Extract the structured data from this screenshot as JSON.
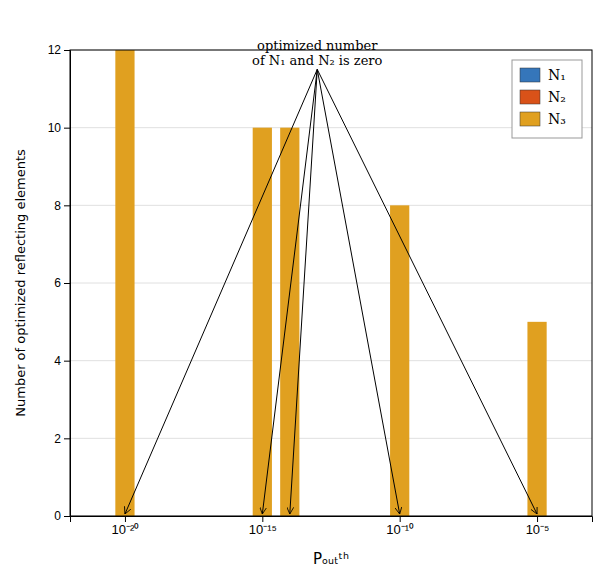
{
  "chart_data": {
    "type": "bar",
    "xlabel": "Pₒᵤₜᵗʰ",
    "ylabel": "Number of optimized reflecting elements",
    "log": "x",
    "x": [
      1e-20,
      1e-15,
      1e-14,
      1e-10,
      1e-05
    ],
    "series": [
      {
        "name": "N₁",
        "color": "#3576ba",
        "values": [
          0,
          0,
          0,
          0,
          0
        ]
      },
      {
        "name": "N₂",
        "color": "#d95219",
        "values": [
          0,
          0,
          0,
          0,
          0
        ]
      },
      {
        "name": "N₃",
        "color": "#e0a020",
        "values": [
          12,
          10,
          10,
          8,
          5
        ]
      }
    ],
    "xlim": [
      1e-22,
      0.001
    ],
    "xticks": [
      {
        "value": 1e-20,
        "label": "10⁻²⁰"
      },
      {
        "value": 1e-15,
        "label": "10⁻¹⁵"
      },
      {
        "value": 1e-10,
        "label": "10⁻¹⁰"
      },
      {
        "value": 1e-05,
        "label": "10⁻⁵"
      }
    ],
    "ylim": [
      0,
      12
    ],
    "yticks": [
      0,
      2,
      4,
      6,
      8,
      10,
      12
    ],
    "grid": true,
    "legend": "top-right",
    "annotations": [
      {
        "text": [
          "optimized number",
          "of N₁ and N₂ is zero"
        ],
        "x": 1e-13,
        "y": 11.5,
        "arrows": [
          {
            "x": 1e-20,
            "y": 0.05
          },
          {
            "x": 1e-15,
            "y": 0.05
          },
          {
            "x": 1e-14,
            "y": 0.05
          },
          {
            "x": 1e-10,
            "y": 0.05
          },
          {
            "x": 1e-05,
            "y": 0.05
          }
        ]
      }
    ]
  }
}
